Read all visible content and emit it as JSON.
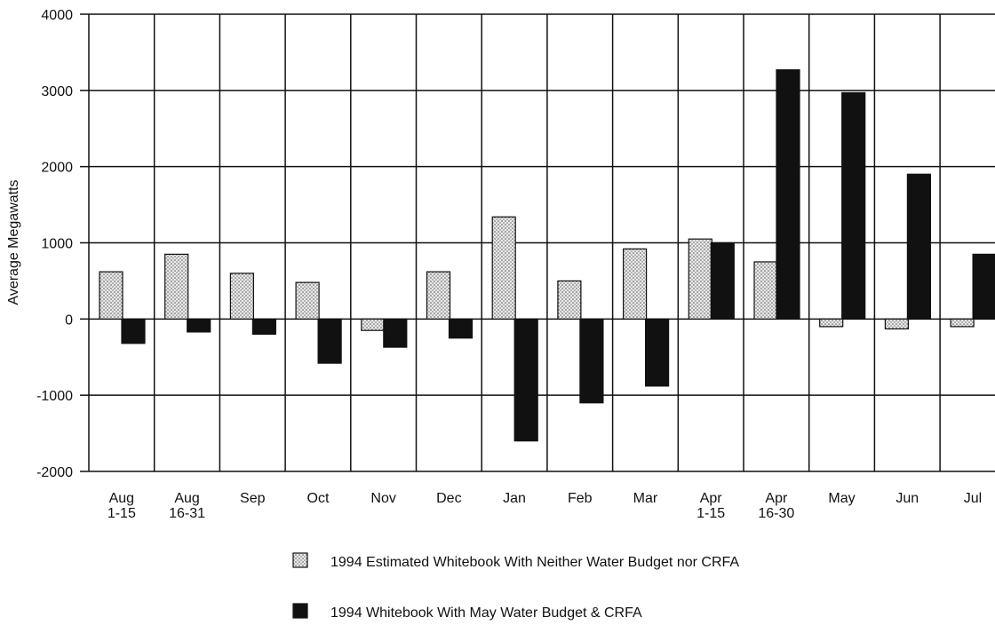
{
  "chart_data": {
    "type": "bar",
    "y_label": "Average Megawatts",
    "categories": [
      "Aug\n1-15",
      "Aug\n16-31",
      "Sep",
      "Oct",
      "Nov",
      "Dec",
      "Jan",
      "Feb",
      "Mar",
      "Apr\n1-15",
      "Apr\n16-30",
      "May",
      "Jun",
      "Jul"
    ],
    "series": [
      {
        "name": "1994 Estimated Whitebook With Neither Water Budget nor CRFA",
        "color": "#d9d9d9",
        "pattern": "dots",
        "values": [
          620,
          850,
          600,
          480,
          -150,
          620,
          1340,
          500,
          920,
          1050,
          750,
          -100,
          -130,
          -100
        ]
      },
      {
        "name": "1994 Whitebook With May Water Budget & CRFA",
        "color": "#111111",
        "values": [
          -320,
          -170,
          -200,
          -580,
          -370,
          -250,
          -1600,
          -1100,
          -880,
          1000,
          3270,
          2970,
          1900,
          850
        ]
      }
    ],
    "ylim": [
      -2000,
      4000
    ],
    "yticks": [
      -2000,
      -1000,
      0,
      1000,
      2000,
      3000,
      4000
    ],
    "grid": true
  }
}
